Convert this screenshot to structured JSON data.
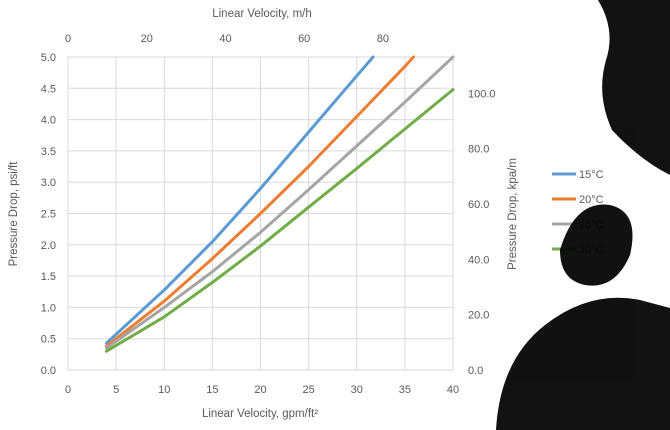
{
  "chart_data": {
    "type": "line",
    "xlabel": "Linear Velocity, gpm/ft²",
    "ylabel": "Pressure Drop, psi/ft",
    "x2label": "Linear Velocity, m/h",
    "y2label": "Pressure Drop, kpa/m",
    "xlim": [
      0,
      40
    ],
    "ylim": [
      0,
      5.0
    ],
    "x2lim": [
      0,
      97.8
    ],
    "y2lim": [
      0,
      113.1
    ],
    "x_ticks": [
      "0",
      "5",
      "10",
      "15",
      "20",
      "25",
      "30",
      "35",
      "40"
    ],
    "y_ticks": [
      "0.0",
      "0.5",
      "1.0",
      "1.5",
      "2.0",
      "2.5",
      "3.0",
      "3.5",
      "4.0",
      "4.5",
      "5.0"
    ],
    "x2_ticks": [
      "0",
      "20",
      "40",
      "60",
      "80"
    ],
    "y2_ticks": [
      "0.0",
      "20.0",
      "40.0",
      "60.0",
      "80.0",
      "100.0"
    ],
    "grid": true,
    "legend_position": "right",
    "series": [
      {
        "name": "15°C",
        "color": "#5B9BD5",
        "x": [
          4,
          10,
          15,
          20,
          25,
          30,
          31.7
        ],
        "y": [
          0.43,
          1.28,
          2.05,
          2.9,
          3.8,
          4.7,
          5.0
        ]
      },
      {
        "name": "20°C",
        "color": "#ED7D31",
        "x": [
          4,
          10,
          15,
          20,
          25,
          30,
          35,
          35.9
        ],
        "y": [
          0.38,
          1.1,
          1.78,
          2.5,
          3.25,
          4.05,
          4.85,
          5.0
        ]
      },
      {
        "name": "25°C",
        "color": "#A5A5A5",
        "x": [
          4,
          10,
          15,
          20,
          25,
          30,
          35,
          40
        ],
        "y": [
          0.35,
          1.0,
          1.57,
          2.2,
          2.88,
          3.58,
          4.28,
          5.0
        ]
      },
      {
        "name": "30°C",
        "color": "#70AD47",
        "x": [
          4,
          10,
          15,
          20,
          25,
          30,
          35,
          40
        ],
        "y": [
          0.3,
          0.85,
          1.4,
          1.98,
          2.6,
          3.22,
          3.85,
          4.48
        ]
      }
    ]
  },
  "watermark": {
    "color": "#000000"
  }
}
